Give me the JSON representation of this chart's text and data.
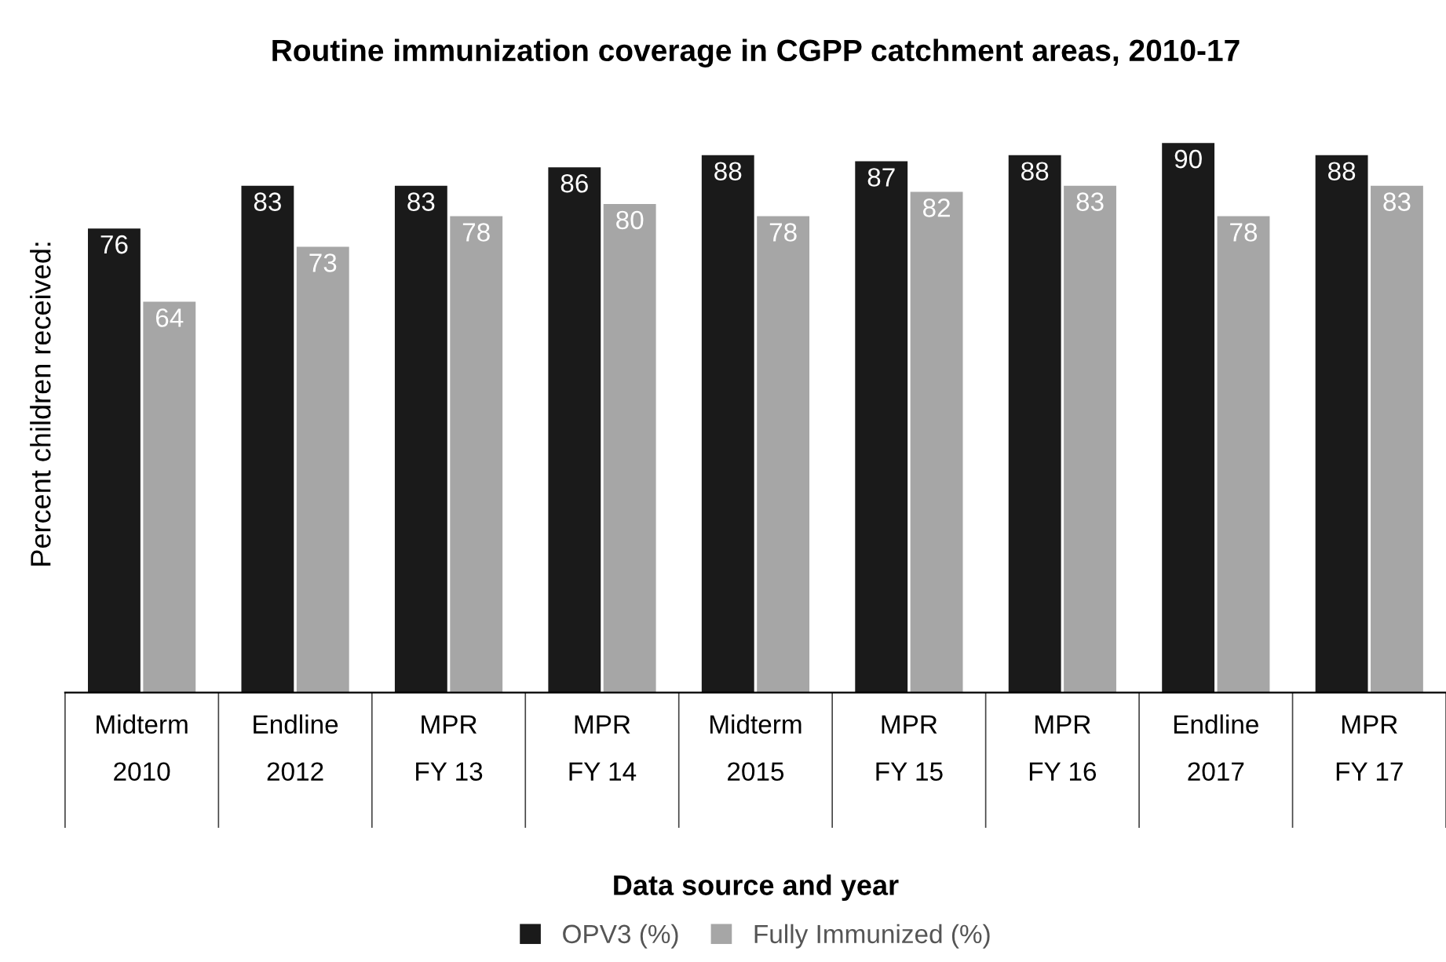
{
  "chart_data": {
    "type": "bar",
    "title": "Routine immunization coverage in CGPP catchment areas, 2010-17",
    "xlabel": "Data source and year",
    "ylabel": "Percent children received:",
    "categories": [
      "Midterm\n2010",
      "Endline\n2012",
      "MPR\nFY 13",
      "MPR\nFY 14",
      "Midterm\n2015",
      "MPR\nFY 15",
      "MPR\nFY 16",
      "Endline\n2017",
      "MPR\nFY 17"
    ],
    "series": [
      {
        "name": "OPV3 (%)",
        "color": "#1a1a1a",
        "values": [
          76,
          83,
          83,
          86,
          88,
          87,
          88,
          90,
          88
        ]
      },
      {
        "name": "Fully Immunized (%)",
        "color": "#a6a6a6",
        "values": [
          64,
          73,
          78,
          80,
          78,
          82,
          83,
          78,
          83
        ]
      }
    ],
    "data_labels": true,
    "legend": "bottom",
    "grid": false
  }
}
